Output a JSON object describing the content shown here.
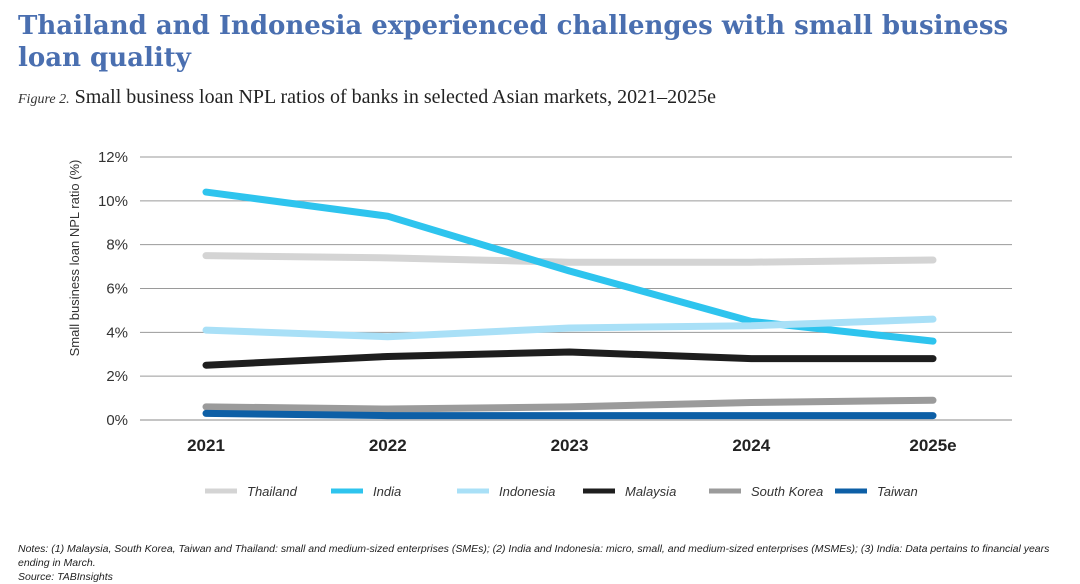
{
  "title": "Thailand and Indonesia experienced challenges with small business loan quality",
  "subtitle": {
    "figure_label": "Figure 2.",
    "text": "Small business loan NPL ratios of banks in selected Asian markets, 2021–2025e"
  },
  "notes": {
    "line1": "Notes: (1) Malaysia, South Korea, Taiwan and Thailand: small and medium-sized enterprises (SMEs); (2) India and Indonesia: micro, small, and medium-sized enterprises (MSMEs); (3) India: Data pertains to financial years ending in March.",
    "line2": "Source: TABInsights"
  },
  "chart_data": {
    "type": "line",
    "ylabel": "Small business loan NPL ratio (%)",
    "ylim": [
      0,
      12
    ],
    "y_ticks": [
      0,
      2,
      4,
      6,
      8,
      10,
      12
    ],
    "y_tick_labels": [
      "0%",
      "2%",
      "4%",
      "6%",
      "8%",
      "10%",
      "12%"
    ],
    "categories": [
      "2021",
      "2022",
      "2023",
      "2024",
      "2025e"
    ],
    "grid": true,
    "legend_position": "bottom",
    "series": [
      {
        "name": "Thailand",
        "color": "#d4d4d4",
        "values": [
          7.5,
          7.4,
          7.2,
          7.2,
          7.3
        ]
      },
      {
        "name": "India",
        "color": "#2ec4ee",
        "values": [
          10.4,
          9.3,
          6.8,
          4.5,
          3.6
        ]
      },
      {
        "name": "Indonesia",
        "color": "#a9e0f7",
        "values": [
          4.1,
          3.8,
          4.2,
          4.3,
          4.6
        ]
      },
      {
        "name": "Malaysia",
        "color": "#1e1e1e",
        "values": [
          2.5,
          2.9,
          3.1,
          2.8,
          2.8
        ]
      },
      {
        "name": "South Korea",
        "color": "#9b9b9b",
        "values": [
          0.6,
          0.5,
          0.6,
          0.8,
          0.9
        ]
      },
      {
        "name": "Taiwan",
        "color": "#0d5fa6",
        "values": [
          0.3,
          0.2,
          0.2,
          0.2,
          0.2
        ]
      }
    ]
  }
}
